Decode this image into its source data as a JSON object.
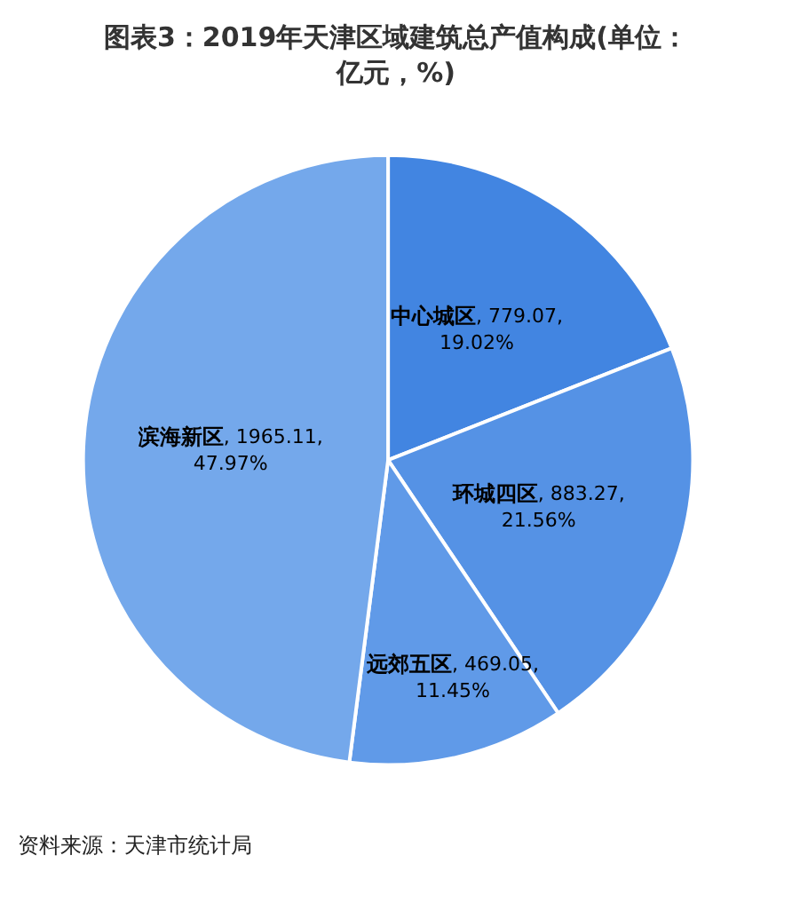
{
  "chart_data": {
    "type": "pie",
    "title": "图表3：2019年天津区域建筑总产值构成(单位：亿元，%)",
    "categories": [
      "中心城区",
      "环城四区",
      "远郊五区",
      "滨海新区"
    ],
    "values": [
      779.07,
      883.27,
      469.05,
      1965.11
    ],
    "value_labels": [
      ", 779.07, 19.02%",
      ", 883.27, 21.56%",
      ", 469.05, 11.45%",
      ", 1965.11, 47.97%"
    ],
    "colors": [
      "#4285e1",
      "#5592e5",
      "#609ae8",
      "#74a8eb"
    ],
    "annotations": [
      "资料来源：天津市统计局"
    ],
    "legend": false
  }
}
